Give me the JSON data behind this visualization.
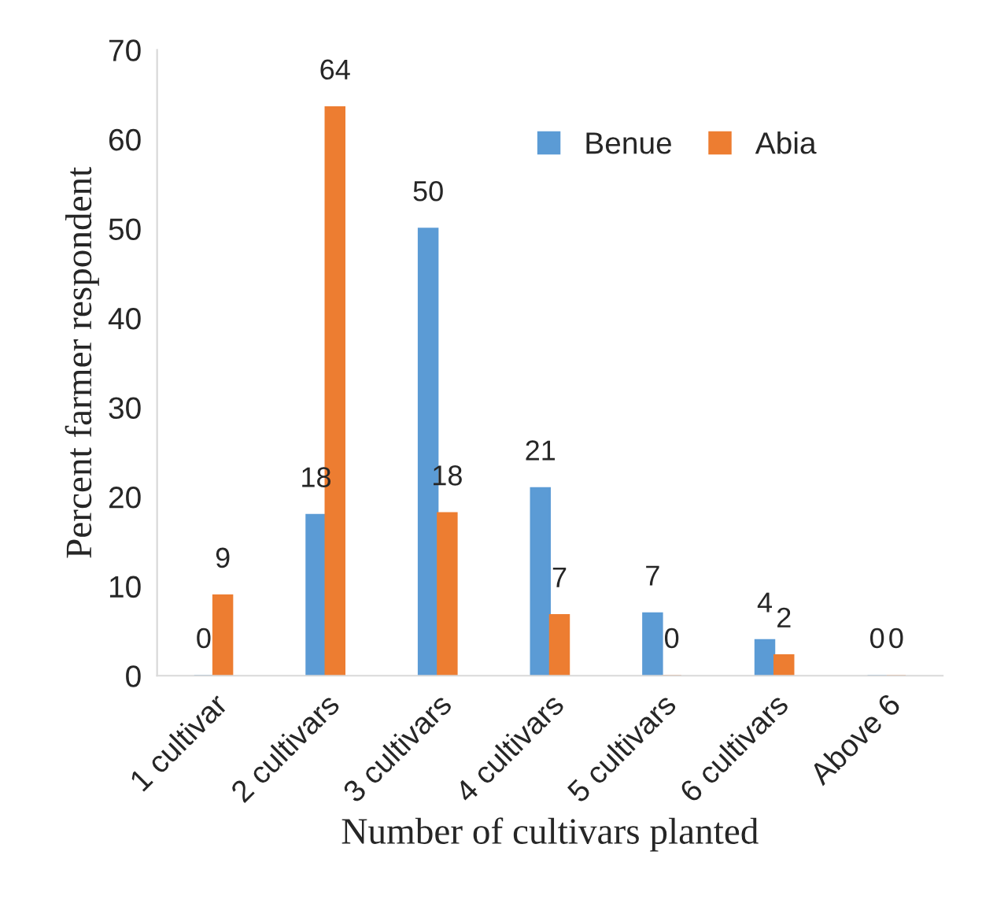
{
  "chart_data": {
    "type": "bar",
    "xlabel": "Number of cultivars planted",
    "ylabel": "Percent farmer respondent",
    "categories": [
      "1 cultivar",
      "2 cultivars",
      "3 cultivars",
      "4 cultivars",
      "5 cultivars",
      "6 cultivars",
      "Above 6"
    ],
    "series": [
      {
        "name": "Benue",
        "color": "#5b9bd5",
        "values": [
          0,
          18,
          50,
          21,
          7,
          4,
          0
        ],
        "value_labels": [
          "0",
          "18",
          "50",
          "21",
          "7",
          "4",
          "0"
        ]
      },
      {
        "name": "Abia",
        "color": "#ed7d31",
        "values": [
          9,
          63.6,
          18.2,
          6.8,
          0,
          2.3,
          0
        ],
        "value_labels": [
          "9",
          "64",
          "18",
          "7",
          "0",
          "2",
          "0"
        ]
      }
    ],
    "ylim": [
      0,
      70
    ],
    "yticks": [
      0,
      10,
      20,
      30,
      40,
      50,
      60,
      70
    ],
    "grid": false,
    "legend": "top right"
  }
}
